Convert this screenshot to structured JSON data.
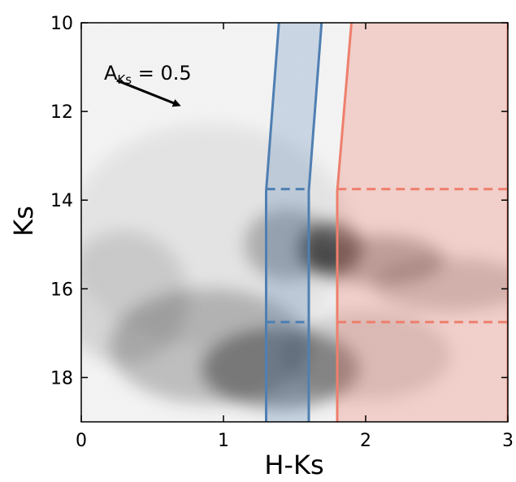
{
  "chart_data": {
    "type": "density",
    "xlabel": "H-Ks",
    "ylabel": "Ks",
    "xlim": [
      0,
      3
    ],
    "ylim": [
      19,
      10
    ],
    "y_inverted": true,
    "xticks": [
      0,
      1,
      2,
      3
    ],
    "yticks": [
      10,
      12,
      14,
      16,
      18
    ],
    "grid": false,
    "annotation": {
      "symbol": "A",
      "subscript": "Ks",
      "rest": " = 0.5",
      "arrow_from": [
        0.25,
        11.3
      ],
      "arrow_to": [
        0.68,
        11.85
      ]
    },
    "density_blobs": [
      {
        "cx": 1.75,
        "cy": 15.1,
        "rx": 0.22,
        "ry": 0.6,
        "weight": 1.0
      },
      {
        "cx": 2.1,
        "cy": 15.35,
        "rx": 0.45,
        "ry": 0.55,
        "weight": 0.55
      },
      {
        "cx": 2.6,
        "cy": 15.9,
        "rx": 0.55,
        "ry": 0.6,
        "weight": 0.35
      },
      {
        "cx": 1.4,
        "cy": 17.8,
        "rx": 0.55,
        "ry": 0.9,
        "weight": 0.7
      },
      {
        "cx": 0.9,
        "cy": 17.3,
        "rx": 0.7,
        "ry": 1.3,
        "weight": 0.4
      },
      {
        "cx": 0.3,
        "cy": 16.2,
        "rx": 0.45,
        "ry": 1.5,
        "weight": 0.22
      },
      {
        "cx": 1.45,
        "cy": 15.0,
        "rx": 0.3,
        "ry": 0.8,
        "weight": 0.45
      },
      {
        "cx": 0.9,
        "cy": 14.8,
        "rx": 1.0,
        "ry": 2.5,
        "weight": 0.12
      },
      {
        "cx": 2.0,
        "cy": 17.5,
        "rx": 0.6,
        "ry": 1.0,
        "weight": 0.25
      }
    ],
    "regions": [
      {
        "name": "blue-region",
        "color": "#4f7fb3",
        "fill_color": "#4f7fb3",
        "fill_opacity": 0.25,
        "left_edge": [
          [
            1.3,
            19.0
          ],
          [
            1.3,
            13.8
          ],
          [
            1.39,
            10.0
          ]
        ],
        "right_edge": [
          [
            1.6,
            19.0
          ],
          [
            1.6,
            13.8
          ],
          [
            1.69,
            10.0
          ]
        ],
        "dashed_y": [
          13.75,
          16.75
        ]
      },
      {
        "name": "red-region",
        "color": "#ee7f6d",
        "fill_color": "#ee7f6d",
        "fill_opacity": 0.3,
        "left_edge": [
          [
            1.8,
            19.0
          ],
          [
            1.8,
            13.8
          ],
          [
            1.9,
            10.0
          ]
        ],
        "right_edge": [
          [
            3.0,
            19.0
          ],
          [
            3.0,
            10.0
          ]
        ],
        "dashed_y": [
          13.75,
          16.75
        ]
      }
    ]
  }
}
